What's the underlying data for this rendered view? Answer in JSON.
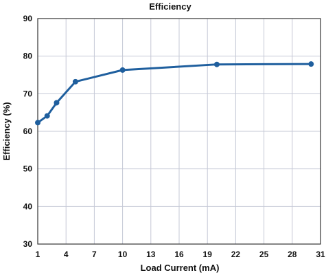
{
  "chart_data": {
    "type": "line",
    "title": "Efficiency",
    "xlabel": "Load Current (mA)",
    "ylabel": "Efficiency (%)",
    "x_ticks": [
      1,
      4,
      7,
      10,
      13,
      16,
      19,
      22,
      25,
      28,
      31
    ],
    "y_ticks": [
      30,
      40,
      50,
      60,
      70,
      80,
      90
    ],
    "xlim": [
      1,
      31
    ],
    "ylim": [
      30,
      90
    ],
    "grid": true,
    "line_color": "#1f5f9e",
    "grid_color": "#c5c8d6",
    "series": [
      {
        "x": [
          1,
          2,
          3,
          5,
          10,
          20,
          30
        ],
        "y": [
          62.3,
          64.1,
          67.6,
          73.2,
          76.3,
          77.8,
          77.9
        ]
      }
    ]
  }
}
